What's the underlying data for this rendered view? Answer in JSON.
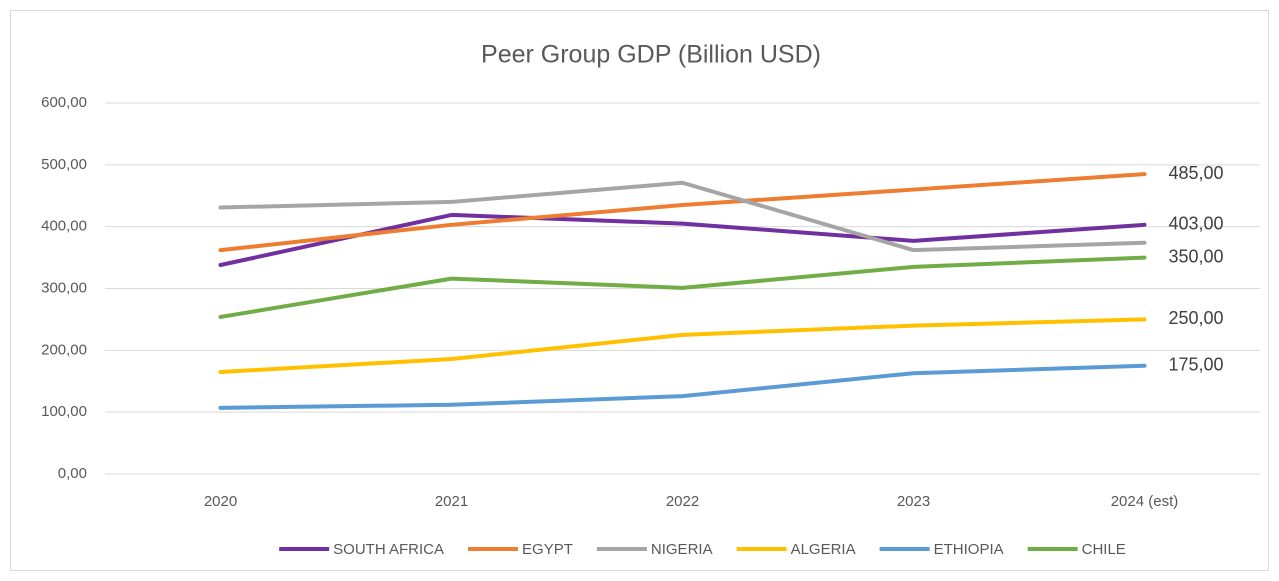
{
  "chart_data": {
    "type": "line",
    "title": "Peer Group GDP (Billion USD)",
    "categories": [
      "2020",
      "2021",
      "2022",
      "2023",
      "2024 (est)"
    ],
    "series": [
      {
        "name": "SOUTH AFRICA",
        "color": "#7030a0",
        "values": [
          338,
          419,
          405,
          377,
          403
        ],
        "value_labels": [
          null,
          null,
          null,
          null,
          "403,00"
        ]
      },
      {
        "name": "EGYPT",
        "color": "#ed7d31",
        "values": [
          362,
          403,
          435,
          460,
          485
        ],
        "value_labels": [
          null,
          null,
          null,
          null,
          "485,00"
        ]
      },
      {
        "name": "NIGERIA",
        "color": "#a5a5a5",
        "values": [
          431,
          440,
          471,
          362,
          374
        ]
      },
      {
        "name": "ALGERIA",
        "color": "#ffc000",
        "values": [
          165,
          186,
          225,
          240,
          250
        ],
        "value_labels": [
          null,
          null,
          null,
          null,
          "250,00"
        ]
      },
      {
        "name": "ETHIOPIA",
        "color": "#5b9bd5",
        "values": [
          107,
          112,
          126,
          163,
          175
        ],
        "value_labels": [
          null,
          null,
          null,
          null,
          "175,00"
        ]
      },
      {
        "name": "CHILE",
        "color": "#70ad47",
        "values": [
          254,
          316,
          301,
          335,
          350
        ],
        "value_labels": [
          null,
          null,
          null,
          null,
          "350,00"
        ]
      }
    ],
    "ylim": [
      0,
      600
    ],
    "yticks": [
      {
        "value": 0,
        "label": "0,00"
      },
      {
        "value": 100,
        "label": "100,00"
      },
      {
        "value": 200,
        "label": "200,00"
      },
      {
        "value": 300,
        "label": "300,00"
      },
      {
        "value": 400,
        "label": "400,00"
      },
      {
        "value": 500,
        "label": "500,00"
      },
      {
        "value": 600,
        "label": "600,00"
      }
    ],
    "grid": true,
    "legend": "bottom"
  }
}
